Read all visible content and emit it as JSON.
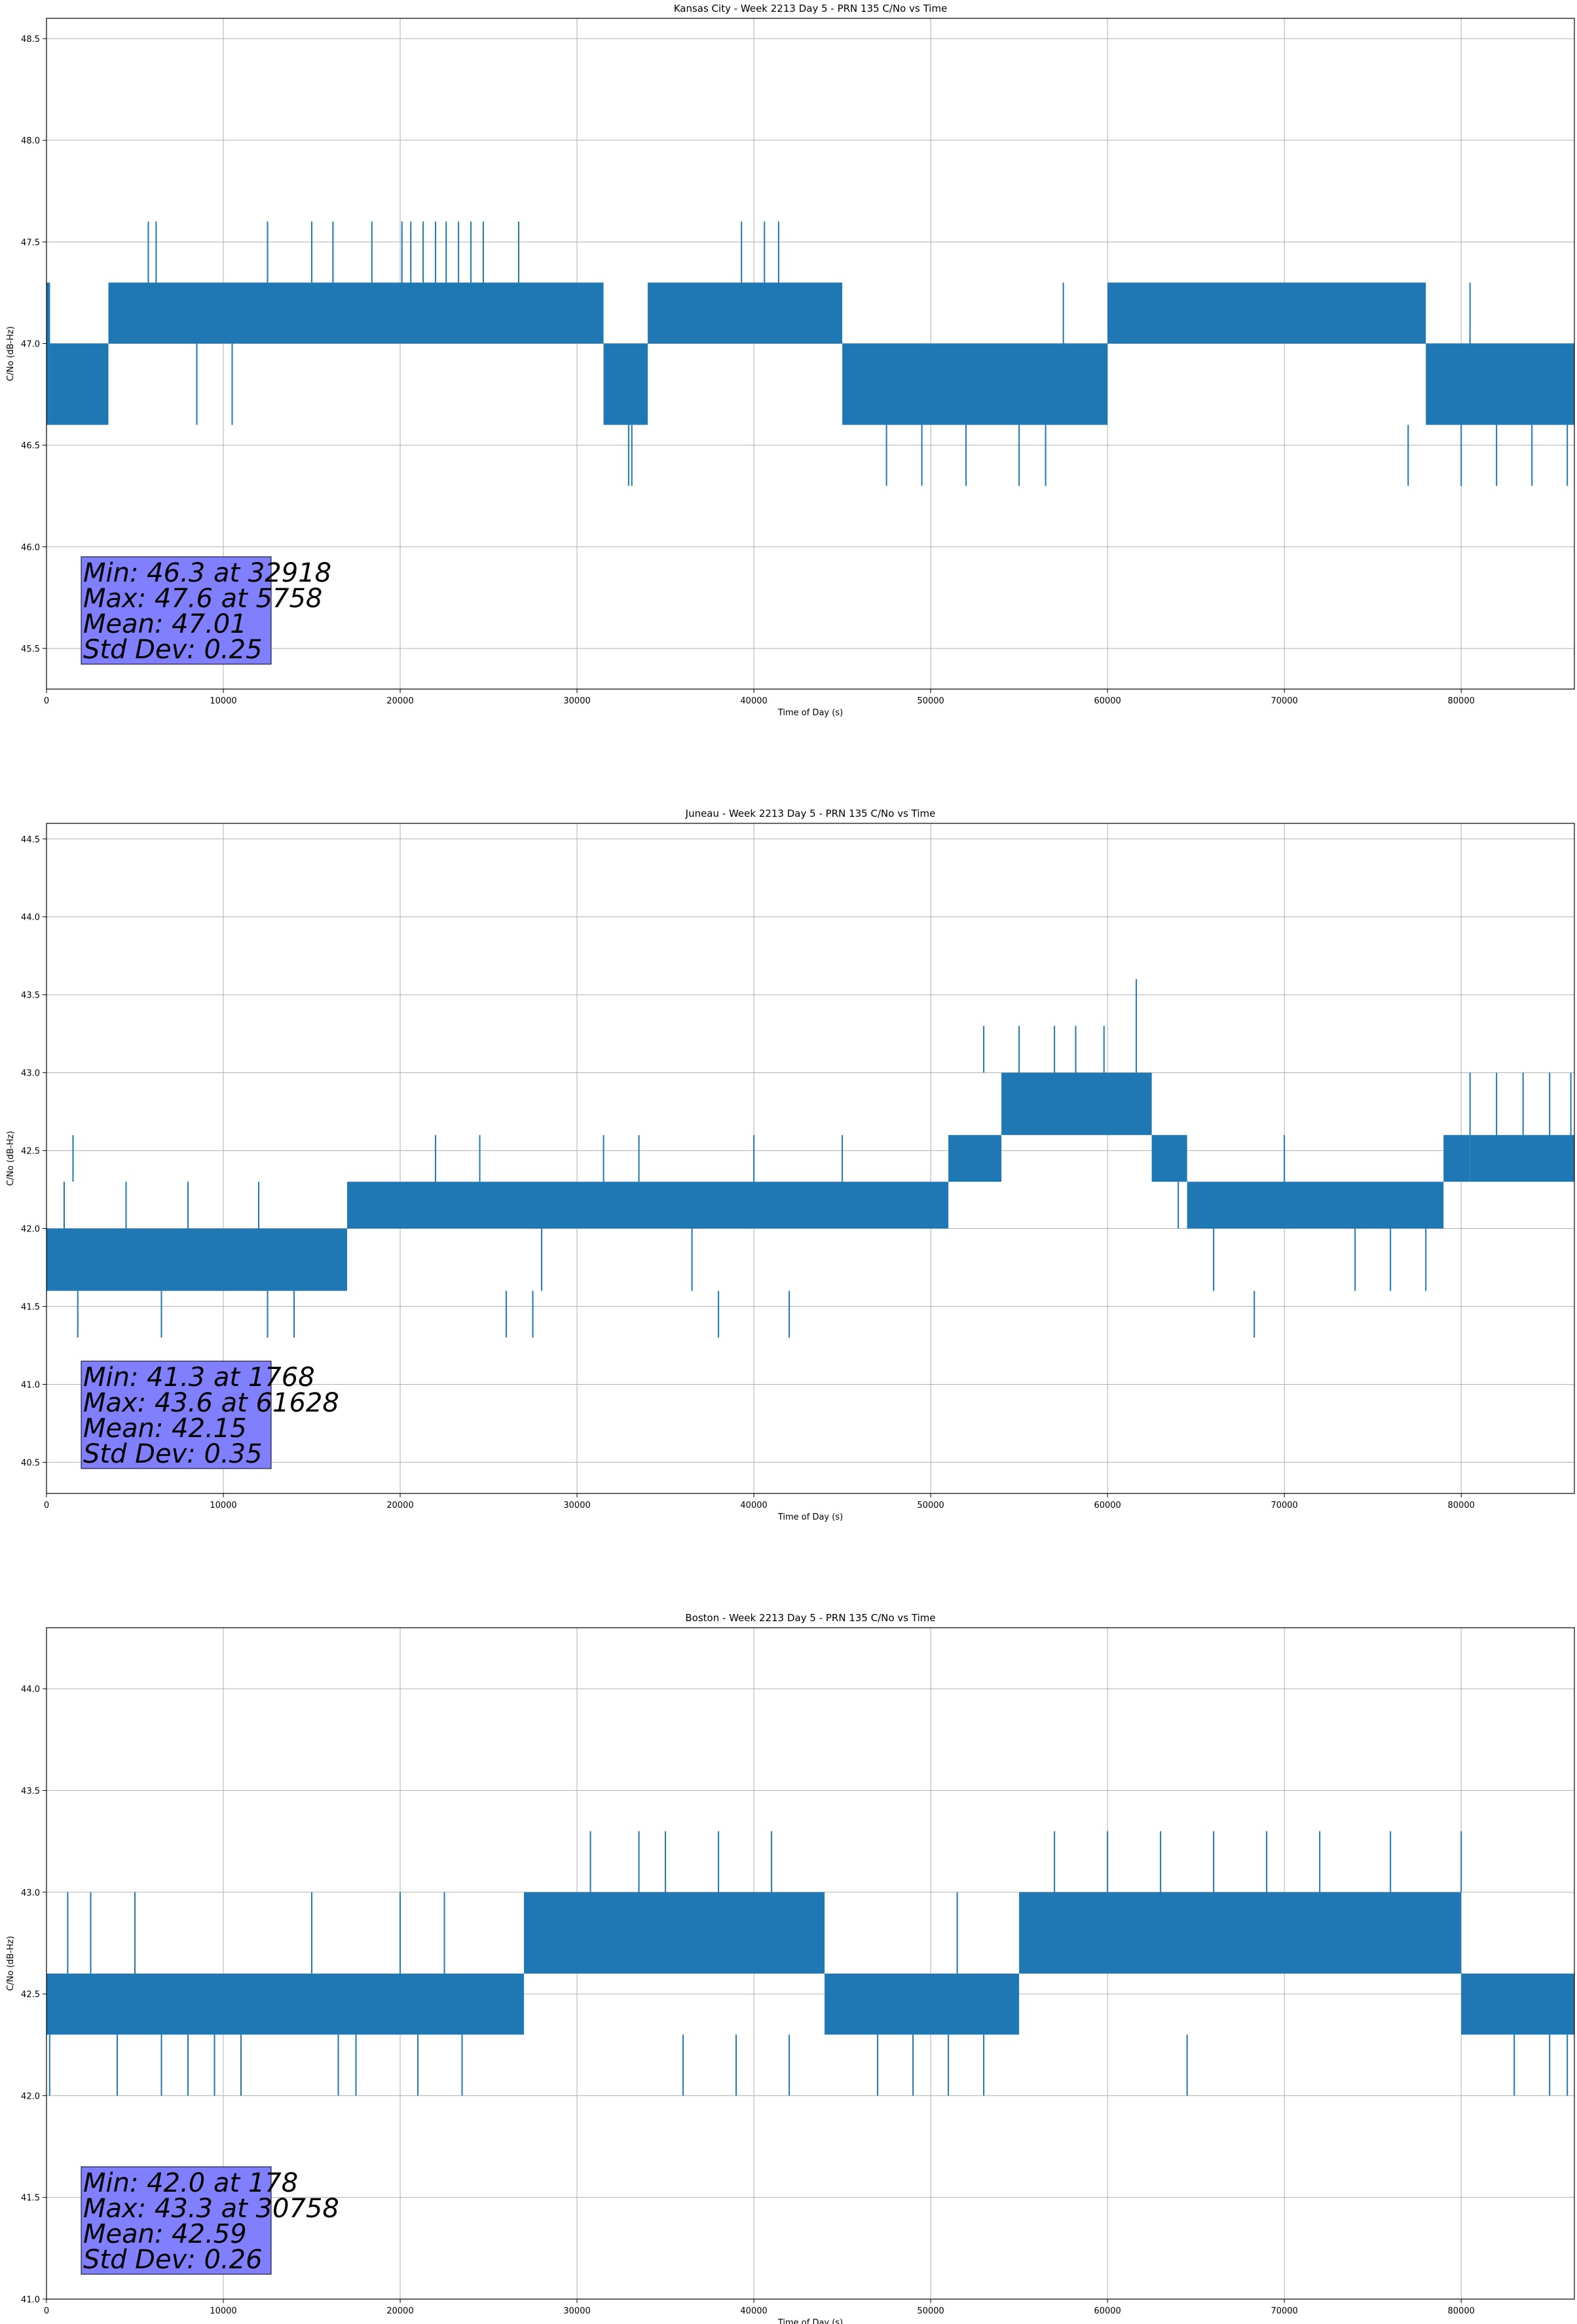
{
  "chart_data": [
    {
      "type": "line",
      "title": "Kansas City - Week 2213 Day 5 - PRN 135 C/No vs Time",
      "xlabel": "Time of Day (s)",
      "ylabel": "C/No (dB-Hz)",
      "xlim": [
        0,
        86400
      ],
      "ylim": [
        45.3,
        48.6
      ],
      "xticks": [
        0,
        10000,
        20000,
        30000,
        40000,
        50000,
        60000,
        70000,
        80000
      ],
      "yticks": [
        45.5,
        46.0,
        46.5,
        47.0,
        47.5,
        48.0,
        48.5
      ],
      "grid": true,
      "color": "#1f77b4",
      "stats": {
        "lines": [
          "Min: 46.3 at 32918",
          "Max: 47.6 at 5758",
          "Mean: 47.01",
          "Std Dev: 0.25"
        ],
        "box_color": "#8080ff",
        "placement": "lower-left"
      },
      "segments": [
        {
          "x": [
            0,
            200
          ],
          "y": [
            46.6,
            47.3
          ]
        },
        {
          "x": [
            200,
            3500
          ],
          "y": [
            46.6,
            47.0
          ]
        },
        {
          "x": [
            3500,
            15000
          ],
          "y": [
            47.0,
            47.3
          ]
        },
        {
          "x": [
            15000,
            31500
          ],
          "y": [
            47.0,
            47.3
          ]
        },
        {
          "x": [
            31500,
            34000
          ],
          "y": [
            46.6,
            47.0
          ]
        },
        {
          "x": [
            34000,
            45000
          ],
          "y": [
            47.0,
            47.3
          ]
        },
        {
          "x": [
            45000,
            60000
          ],
          "y": [
            46.6,
            47.0
          ]
        },
        {
          "x": [
            60000,
            78000
          ],
          "y": [
            47.0,
            47.3
          ]
        },
        {
          "x": [
            78000,
            86400
          ],
          "y": [
            46.6,
            47.0
          ]
        }
      ],
      "spikes": [
        {
          "x": 5758,
          "y0": 47.3,
          "y1": 47.6
        },
        {
          "x": 6200,
          "y0": 47.3,
          "y1": 47.6
        },
        {
          "x": 12500,
          "y0": 47.3,
          "y1": 47.6
        },
        {
          "x": 15000,
          "y0": 47.3,
          "y1": 47.6
        },
        {
          "x": 16200,
          "y0": 47.3,
          "y1": 47.6
        },
        {
          "x": 18400,
          "y0": 47.3,
          "y1": 47.6
        },
        {
          "x": 20100,
          "y0": 47.3,
          "y1": 47.6
        },
        {
          "x": 20600,
          "y0": 47.3,
          "y1": 47.6
        },
        {
          "x": 21300,
          "y0": 47.3,
          "y1": 47.6
        },
        {
          "x": 22000,
          "y0": 47.3,
          "y1": 47.6
        },
        {
          "x": 22600,
          "y0": 47.3,
          "y1": 47.6
        },
        {
          "x": 23300,
          "y0": 47.3,
          "y1": 47.6
        },
        {
          "x": 24000,
          "y0": 47.3,
          "y1": 47.6
        },
        {
          "x": 24700,
          "y0": 47.3,
          "y1": 47.6
        },
        {
          "x": 26700,
          "y0": 47.3,
          "y1": 47.6
        },
        {
          "x": 39300,
          "y0": 47.3,
          "y1": 47.6
        },
        {
          "x": 40600,
          "y0": 47.3,
          "y1": 47.6
        },
        {
          "x": 41400,
          "y0": 47.3,
          "y1": 47.6
        },
        {
          "x": 8500,
          "y0": 46.6,
          "y1": 47.0
        },
        {
          "x": 10500,
          "y0": 46.6,
          "y1": 47.0
        },
        {
          "x": 32918,
          "y0": 46.3,
          "y1": 46.6
        },
        {
          "x": 33100,
          "y0": 46.3,
          "y1": 46.6
        },
        {
          "x": 47500,
          "y0": 46.3,
          "y1": 46.6
        },
        {
          "x": 49500,
          "y0": 46.3,
          "y1": 46.6
        },
        {
          "x": 52000,
          "y0": 46.3,
          "y1": 46.6
        },
        {
          "x": 55000,
          "y0": 46.3,
          "y1": 46.6
        },
        {
          "x": 56500,
          "y0": 46.3,
          "y1": 46.6
        },
        {
          "x": 77000,
          "y0": 46.3,
          "y1": 46.6
        },
        {
          "x": 80000,
          "y0": 46.3,
          "y1": 46.6
        },
        {
          "x": 82000,
          "y0": 46.3,
          "y1": 46.6
        },
        {
          "x": 84000,
          "y0": 46.3,
          "y1": 46.6
        },
        {
          "x": 86000,
          "y0": 46.3,
          "y1": 46.6
        },
        {
          "x": 57500,
          "y0": 47.0,
          "y1": 47.3
        },
        {
          "x": 80500,
          "y0": 47.0,
          "y1": 47.3
        }
      ]
    },
    {
      "type": "line",
      "title": "Juneau - Week 2213 Day 5 - PRN 135 C/No vs Time",
      "xlabel": "Time of Day (s)",
      "ylabel": "C/No (dB-Hz)",
      "xlim": [
        0,
        86400
      ],
      "ylim": [
        40.3,
        44.6
      ],
      "xticks": [
        0,
        10000,
        20000,
        30000,
        40000,
        50000,
        60000,
        70000,
        80000
      ],
      "yticks": [
        40.5,
        41.0,
        41.5,
        42.0,
        42.5,
        43.0,
        43.5,
        44.0,
        44.5
      ],
      "grid": true,
      "color": "#1f77b4",
      "stats": {
        "lines": [
          "Min: 41.3 at 1768",
          "Max: 43.6 at 61628",
          "Mean: 42.15",
          "Std Dev: 0.35"
        ],
        "box_color": "#8080ff",
        "placement": "lower-left"
      },
      "segments": [
        {
          "x": [
            0,
            17000
          ],
          "y": [
            41.6,
            42.0
          ]
        },
        {
          "x": [
            17000,
            51000
          ],
          "y": [
            42.0,
            42.3
          ]
        },
        {
          "x": [
            51000,
            54000
          ],
          "y": [
            42.3,
            42.6
          ]
        },
        {
          "x": [
            54000,
            62500
          ],
          "y": [
            42.6,
            43.0
          ]
        },
        {
          "x": [
            62500,
            64500
          ],
          "y": [
            42.3,
            42.6
          ]
        },
        {
          "x": [
            64500,
            79000
          ],
          "y": [
            42.0,
            42.3
          ]
        },
        {
          "x": [
            79000,
            80500
          ],
          "y": [
            42.3,
            42.6
          ]
        },
        {
          "x": [
            80500,
            86400
          ],
          "y": [
            42.3,
            42.6
          ]
        }
      ],
      "spikes": [
        {
          "x": 1000,
          "y0": 42.0,
          "y1": 42.3
        },
        {
          "x": 1500,
          "y0": 42.3,
          "y1": 42.6
        },
        {
          "x": 1768,
          "y0": 41.3,
          "y1": 41.6
        },
        {
          "x": 4500,
          "y0": 42.0,
          "y1": 42.3
        },
        {
          "x": 6500,
          "y0": 41.3,
          "y1": 41.6
        },
        {
          "x": 8000,
          "y0": 42.0,
          "y1": 42.3
        },
        {
          "x": 12000,
          "y0": 42.0,
          "y1": 42.3
        },
        {
          "x": 12500,
          "y0": 41.3,
          "y1": 41.6
        },
        {
          "x": 14000,
          "y0": 41.3,
          "y1": 41.6
        },
        {
          "x": 22000,
          "y0": 42.3,
          "y1": 42.6
        },
        {
          "x": 24500,
          "y0": 42.3,
          "y1": 42.6
        },
        {
          "x": 26000,
          "y0": 41.3,
          "y1": 41.6
        },
        {
          "x": 27500,
          "y0": 41.3,
          "y1": 41.6
        },
        {
          "x": 28000,
          "y0": 41.6,
          "y1": 42.0
        },
        {
          "x": 31500,
          "y0": 42.3,
          "y1": 42.6
        },
        {
          "x": 33500,
          "y0": 42.3,
          "y1": 42.6
        },
        {
          "x": 36500,
          "y0": 41.6,
          "y1": 42.0
        },
        {
          "x": 38000,
          "y0": 41.3,
          "y1": 41.6
        },
        {
          "x": 40000,
          "y0": 42.3,
          "y1": 42.6
        },
        {
          "x": 42000,
          "y0": 41.3,
          "y1": 41.6
        },
        {
          "x": 45000,
          "y0": 42.3,
          "y1": 42.6
        },
        {
          "x": 53000,
          "y0": 43.0,
          "y1": 43.3
        },
        {
          "x": 55000,
          "y0": 43.0,
          "y1": 43.3
        },
        {
          "x": 57000,
          "y0": 43.0,
          "y1": 43.3
        },
        {
          "x": 58200,
          "y0": 43.0,
          "y1": 43.3
        },
        {
          "x": 59800,
          "y0": 43.0,
          "y1": 43.3
        },
        {
          "x": 61628,
          "y0": 43.0,
          "y1": 43.6
        },
        {
          "x": 64000,
          "y0": 42.0,
          "y1": 42.3
        },
        {
          "x": 66000,
          "y0": 41.6,
          "y1": 42.0
        },
        {
          "x": 68300,
          "y0": 41.3,
          "y1": 41.6
        },
        {
          "x": 70000,
          "y0": 42.3,
          "y1": 42.6
        },
        {
          "x": 74000,
          "y0": 41.6,
          "y1": 42.0
        },
        {
          "x": 76000,
          "y0": 41.6,
          "y1": 42.0
        },
        {
          "x": 78000,
          "y0": 41.6,
          "y1": 42.0
        },
        {
          "x": 80500,
          "y0": 42.6,
          "y1": 43.0
        },
        {
          "x": 82000,
          "y0": 42.6,
          "y1": 43.0
        },
        {
          "x": 83500,
          "y0": 42.6,
          "y1": 43.0
        },
        {
          "x": 85000,
          "y0": 42.6,
          "y1": 43.0
        },
        {
          "x": 86200,
          "y0": 42.6,
          "y1": 43.0
        }
      ]
    },
    {
      "type": "line",
      "title": "Boston - Week 2213 Day 5 - PRN 135 C/No vs Time",
      "xlabel": "Time of Day (s)",
      "ylabel": "C/No (dB-Hz)",
      "xlim": [
        0,
        86400
      ],
      "ylim": [
        41.0,
        44.3
      ],
      "xticks": [
        0,
        10000,
        20000,
        30000,
        40000,
        50000,
        60000,
        70000,
        80000
      ],
      "yticks": [
        41.0,
        41.5,
        42.0,
        42.5,
        43.0,
        43.5,
        44.0
      ],
      "grid": true,
      "color": "#1f77b4",
      "stats": {
        "lines": [
          "Min: 42.0 at 178",
          "Max: 43.3 at 30758",
          "Mean: 42.59",
          "Std Dev: 0.26"
        ],
        "box_color": "#8080ff",
        "placement": "lower-left"
      },
      "segments": [
        {
          "x": [
            0,
            27000
          ],
          "y": [
            42.3,
            42.6
          ]
        },
        {
          "x": [
            27000,
            44000
          ],
          "y": [
            42.6,
            43.0
          ]
        },
        {
          "x": [
            44000,
            55000
          ],
          "y": [
            42.3,
            42.6
          ]
        },
        {
          "x": [
            55000,
            80000
          ],
          "y": [
            42.6,
            43.0
          ]
        },
        {
          "x": [
            80000,
            86400
          ],
          "y": [
            42.3,
            42.6
          ]
        }
      ],
      "spikes": [
        {
          "x": 178,
          "y0": 42.0,
          "y1": 42.3
        },
        {
          "x": 1200,
          "y0": 42.6,
          "y1": 43.0
        },
        {
          "x": 2500,
          "y0": 42.6,
          "y1": 43.0
        },
        {
          "x": 4000,
          "y0": 42.0,
          "y1": 42.3
        },
        {
          "x": 5000,
          "y0": 42.6,
          "y1": 43.0
        },
        {
          "x": 6500,
          "y0": 42.0,
          "y1": 42.3
        },
        {
          "x": 8000,
          "y0": 42.0,
          "y1": 42.3
        },
        {
          "x": 9500,
          "y0": 42.0,
          "y1": 42.3
        },
        {
          "x": 11000,
          "y0": 42.0,
          "y1": 42.3
        },
        {
          "x": 15000,
          "y0": 42.6,
          "y1": 43.0
        },
        {
          "x": 16500,
          "y0": 42.0,
          "y1": 42.3
        },
        {
          "x": 17500,
          "y0": 42.0,
          "y1": 42.3
        },
        {
          "x": 20000,
          "y0": 42.6,
          "y1": 43.0
        },
        {
          "x": 21000,
          "y0": 42.0,
          "y1": 42.3
        },
        {
          "x": 22500,
          "y0": 42.6,
          "y1": 43.0
        },
        {
          "x": 23500,
          "y0": 42.0,
          "y1": 42.3
        },
        {
          "x": 30758,
          "y0": 43.0,
          "y1": 43.3
        },
        {
          "x": 33500,
          "y0": 43.0,
          "y1": 43.3
        },
        {
          "x": 35000,
          "y0": 43.0,
          "y1": 43.3
        },
        {
          "x": 38000,
          "y0": 43.0,
          "y1": 43.3
        },
        {
          "x": 41000,
          "y0": 43.0,
          "y1": 43.3
        },
        {
          "x": 36000,
          "y0": 42.0,
          "y1": 42.3
        },
        {
          "x": 39000,
          "y0": 42.0,
          "y1": 42.3
        },
        {
          "x": 42000,
          "y0": 42.0,
          "y1": 42.3
        },
        {
          "x": 47000,
          "y0": 42.0,
          "y1": 42.3
        },
        {
          "x": 49000,
          "y0": 42.0,
          "y1": 42.3
        },
        {
          "x": 51000,
          "y0": 42.0,
          "y1": 42.3
        },
        {
          "x": 53000,
          "y0": 42.0,
          "y1": 42.3
        },
        {
          "x": 51500,
          "y0": 42.6,
          "y1": 43.0
        },
        {
          "x": 57000,
          "y0": 43.0,
          "y1": 43.3
        },
        {
          "x": 60000,
          "y0": 43.0,
          "y1": 43.3
        },
        {
          "x": 63000,
          "y0": 43.0,
          "y1": 43.3
        },
        {
          "x": 66000,
          "y0": 43.0,
          "y1": 43.3
        },
        {
          "x": 69000,
          "y0": 43.0,
          "y1": 43.3
        },
        {
          "x": 72000,
          "y0": 43.0,
          "y1": 43.3
        },
        {
          "x": 76000,
          "y0": 43.0,
          "y1": 43.3
        },
        {
          "x": 80000,
          "y0": 43.0,
          "y1": 43.3
        },
        {
          "x": 64500,
          "y0": 42.0,
          "y1": 42.3
        },
        {
          "x": 83000,
          "y0": 42.0,
          "y1": 42.3
        },
        {
          "x": 85000,
          "y0": 42.0,
          "y1": 42.3
        },
        {
          "x": 86000,
          "y0": 42.0,
          "y1": 42.3
        }
      ]
    }
  ]
}
